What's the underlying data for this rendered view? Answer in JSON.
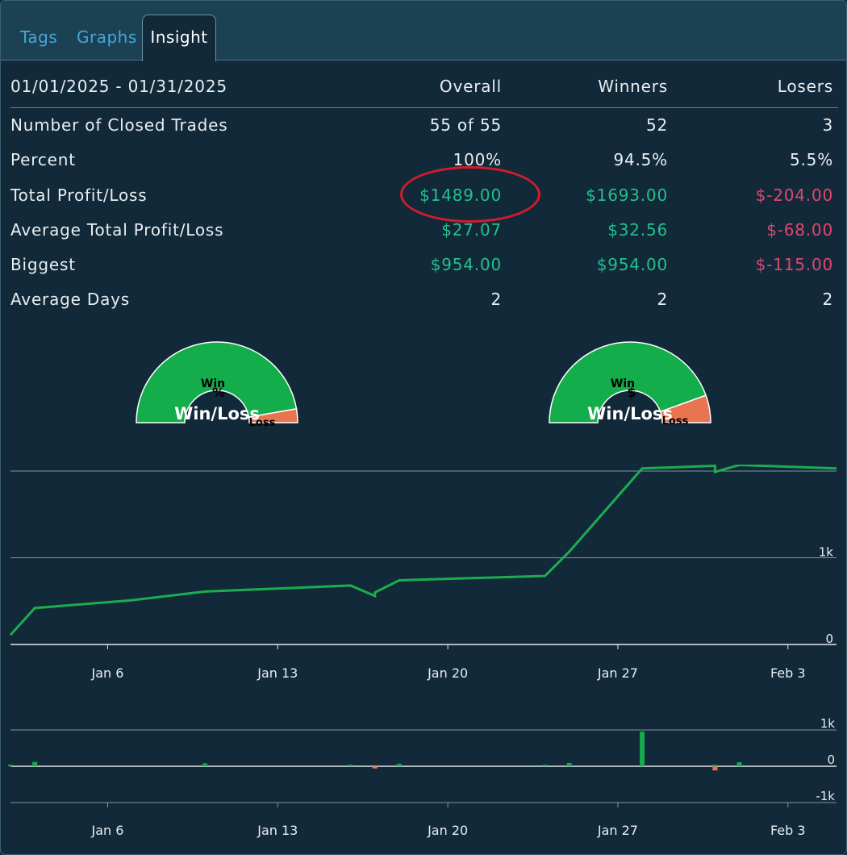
{
  "tabs": [
    {
      "label": "Tags"
    },
    {
      "label": "Graphs"
    },
    {
      "label": "Insight",
      "active": true
    }
  ],
  "stats": {
    "date_range": "01/01/2025 - 01/31/2025",
    "columns": [
      "Overall",
      "Winners",
      "Losers"
    ],
    "rows": [
      {
        "label": "Number of Closed Trades",
        "overall": "55 of 55",
        "winners": "52",
        "losers": "3"
      },
      {
        "label": "Percent",
        "overall": "100%",
        "winners": "94.5%",
        "losers": "5.5%"
      },
      {
        "label": "Total Profit/Loss",
        "overall": "$1489.00",
        "winners": "$1693.00",
        "losers": "$-204.00"
      },
      {
        "label": "Average Total Profit/Loss",
        "overall": "$27.07",
        "winners": "$32.56",
        "losers": "$-68.00"
      },
      {
        "label": "Biggest",
        "overall": "$954.00",
        "winners": "$954.00",
        "losers": "$-115.00"
      },
      {
        "label": "Average Days",
        "overall": "2",
        "winners": "2",
        "losers": "2"
      }
    ],
    "highlighted_value": "$1489.00"
  },
  "gauges": [
    {
      "title": "Win/Loss",
      "symbol": "%",
      "win_label": "Win",
      "loss_label": "Loss",
      "win_share": 0.945
    },
    {
      "title": "Win/Loss",
      "symbol": "$",
      "win_label": "Win",
      "loss_label": "Loss",
      "win_share": 0.89
    }
  ],
  "colors": {
    "background": "#12293a",
    "tabbar": "#1b4153",
    "positive": "#22c08c",
    "negative": "#e0476c",
    "win": "#13ad4c",
    "loss": "#e87550",
    "line": "#1cad4e"
  },
  "chart_data": [
    {
      "type": "line",
      "x_ticks": [
        "Jan 6",
        "Jan 13",
        "Jan 20",
        "Jan 27",
        "Feb 3"
      ],
      "y_ticks": [
        "0",
        "1k"
      ],
      "ylim": [
        0,
        2000
      ],
      "x_range": [
        "2025-01-02",
        "2025-02-05"
      ],
      "grid": true,
      "series": [
        {
          "x": [
            "2025-01-02",
            "2025-01-03",
            "2025-01-07",
            "2025-01-10",
            "2025-01-16",
            "2025-01-17",
            "2025-01-17",
            "2025-01-18",
            "2025-01-24",
            "2025-01-25",
            "2025-01-28",
            "2025-01-31",
            "2025-01-31",
            "2025-02-01",
            "2025-02-05"
          ],
          "y": [
            110,
            420,
            510,
            610,
            680,
            560,
            600,
            740,
            790,
            1070,
            2030,
            2060,
            1990,
            2070,
            2030
          ]
        }
      ]
    },
    {
      "type": "bar",
      "x_ticks": [
        "Jan 6",
        "Jan 13",
        "Jan 20",
        "Jan 27",
        "Feb 3"
      ],
      "y_ticks": [
        "1k",
        "0",
        "-1k"
      ],
      "ylim": [
        -1000,
        1000
      ],
      "grid": true,
      "x": [
        "2025-01-02",
        "2025-01-03",
        "2025-01-10",
        "2025-01-16",
        "2025-01-17",
        "2025-01-18",
        "2025-01-24",
        "2025-01-25",
        "2025-01-28",
        "2025-01-31",
        "2025-01-31",
        "2025-02-01"
      ],
      "values": [
        40,
        120,
        80,
        20,
        -60,
        70,
        15,
        90,
        954,
        20,
        -115,
        110
      ]
    }
  ]
}
